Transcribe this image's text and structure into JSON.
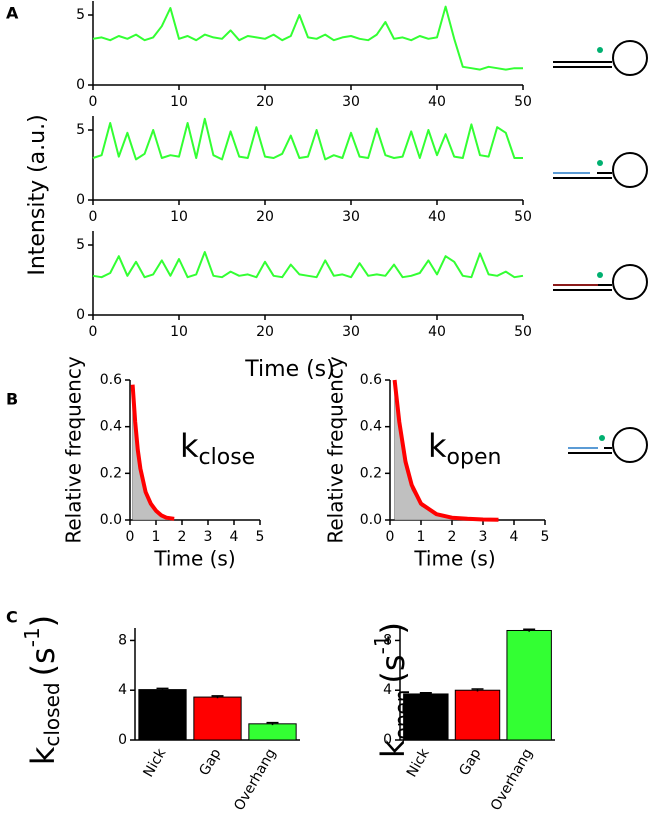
{
  "panel_labels": [
    "A",
    "B",
    "C"
  ],
  "shared_y_label": "Intensity (a.u.)",
  "shared_x_label": "Time (s)",
  "chart_data": [
    {
      "type": "line",
      "xlim": [
        0,
        50
      ],
      "ylim": [
        0,
        6
      ],
      "xticks": [
        0,
        10,
        20,
        30,
        40,
        50
      ],
      "yticks": [
        0,
        5
      ],
      "x": [
        0,
        1,
        2,
        3,
        4,
        5,
        6,
        7,
        8,
        9,
        10,
        11,
        12,
        13,
        14,
        15,
        16,
        17,
        18,
        19,
        20,
        21,
        22,
        23,
        24,
        25,
        26,
        27,
        28,
        29,
        30,
        31,
        32,
        33,
        34,
        35,
        36,
        37,
        38,
        39,
        40,
        41,
        42,
        43,
        44,
        45,
        46,
        47,
        48,
        49,
        50
      ],
      "series": [
        {
          "color": "#33ff33",
          "values": [
            3.3,
            3.4,
            3.2,
            3.5,
            3.3,
            3.6,
            3.2,
            3.4,
            4.2,
            5.5,
            3.3,
            3.5,
            3.2,
            3.6,
            3.4,
            3.3,
            3.9,
            3.2,
            3.5,
            3.4,
            3.3,
            3.6,
            3.2,
            3.5,
            5.0,
            3.4,
            3.3,
            3.6,
            3.2,
            3.4,
            3.5,
            3.3,
            3.2,
            3.6,
            4.5,
            3.3,
            3.4,
            3.2,
            3.5,
            3.3,
            3.4,
            5.6,
            3.3,
            1.3,
            1.2,
            1.1,
            1.3,
            1.2,
            1.1,
            1.2,
            1.2
          ]
        }
      ]
    },
    {
      "type": "line",
      "xlim": [
        0,
        50
      ],
      "ylim": [
        0,
        6
      ],
      "xticks": [
        0,
        10,
        20,
        30,
        40,
        50
      ],
      "yticks": [
        0,
        5
      ],
      "x": [
        0,
        1,
        2,
        3,
        4,
        5,
        6,
        7,
        8,
        9,
        10,
        11,
        12,
        13,
        14,
        15,
        16,
        17,
        18,
        19,
        20,
        21,
        22,
        23,
        24,
        25,
        26,
        27,
        28,
        29,
        30,
        31,
        32,
        33,
        34,
        35,
        36,
        37,
        38,
        39,
        40,
        41,
        42,
        43,
        44,
        45,
        46,
        47,
        48,
        49,
        50
      ],
      "series": [
        {
          "color": "#33ff33",
          "values": [
            3.0,
            3.2,
            5.5,
            3.1,
            4.8,
            2.9,
            3.3,
            5.0,
            3.0,
            3.2,
            3.1,
            5.5,
            3.0,
            5.8,
            3.2,
            2.9,
            4.9,
            3.1,
            3.0,
            5.2,
            3.1,
            3.0,
            3.3,
            4.6,
            3.0,
            3.1,
            5.0,
            2.9,
            3.2,
            3.0,
            4.8,
            3.1,
            3.0,
            5.1,
            3.2,
            3.0,
            3.1,
            4.9,
            3.0,
            5.0,
            3.2,
            4.7,
            3.1,
            3.0,
            5.4,
            3.2,
            3.1,
            5.2,
            4.8,
            3.0,
            3.0
          ]
        }
      ]
    },
    {
      "type": "line",
      "xlim": [
        0,
        50
      ],
      "ylim": [
        0,
        6
      ],
      "xticks": [
        0,
        10,
        20,
        30,
        40,
        50
      ],
      "yticks": [
        0,
        5
      ],
      "x": [
        0,
        1,
        2,
        3,
        4,
        5,
        6,
        7,
        8,
        9,
        10,
        11,
        12,
        13,
        14,
        15,
        16,
        17,
        18,
        19,
        20,
        21,
        22,
        23,
        24,
        25,
        26,
        27,
        28,
        29,
        30,
        31,
        32,
        33,
        34,
        35,
        36,
        37,
        38,
        39,
        40,
        41,
        42,
        43,
        44,
        45,
        46,
        47,
        48,
        49,
        50
      ],
      "series": [
        {
          "color": "#33ff33",
          "values": [
            2.8,
            2.7,
            3.0,
            4.2,
            2.8,
            3.8,
            2.7,
            2.9,
            3.9,
            2.8,
            4.0,
            2.7,
            2.9,
            4.5,
            2.8,
            2.7,
            3.1,
            2.8,
            2.9,
            2.7,
            3.8,
            2.8,
            2.7,
            3.6,
            2.9,
            2.8,
            2.7,
            3.9,
            2.8,
            2.9,
            2.7,
            3.7,
            2.8,
            2.9,
            2.8,
            3.6,
            2.7,
            2.8,
            3.0,
            3.9,
            2.9,
            4.2,
            3.8,
            2.8,
            2.7,
            4.4,
            2.9,
            2.8,
            3.1,
            2.7,
            2.8
          ]
        }
      ]
    },
    {
      "type": "line",
      "y_label": "Relative frequency",
      "x_label": "Time (s)",
      "annotation": {
        "main": "k",
        "sub": "close"
      },
      "xlim": [
        0,
        5
      ],
      "ylim": [
        0,
        0.6
      ],
      "xticks": [
        0,
        1,
        2,
        3,
        4,
        5
      ],
      "yticks": [
        {
          "value": 0,
          "label": "0.0"
        },
        0.2,
        0.4,
        0.6
      ],
      "x": [
        0.1,
        0.2,
        0.3,
        0.4,
        0.6,
        0.8,
        1.0,
        1.2,
        1.4,
        1.7
      ],
      "series": [
        {
          "color": "#c0c0c0",
          "fill": true,
          "values": [
            0.55,
            0.4,
            0.28,
            0.2,
            0.11,
            0.06,
            0.035,
            0.02,
            0.01,
            0
          ]
        },
        {
          "color": "#ff0000",
          "values": [
            0.58,
            0.42,
            0.3,
            0.22,
            0.12,
            0.07,
            0.04,
            0.02,
            0.01,
            0.005
          ]
        }
      ]
    },
    {
      "type": "line",
      "y_label": "Relative frequency",
      "x_label": "Time (s)",
      "annotation": {
        "main": "k",
        "sub": "open"
      },
      "xlim": [
        0,
        5
      ],
      "ylim": [
        0,
        0.6
      ],
      "xticks": [
        0,
        1,
        2,
        3,
        4,
        5
      ],
      "yticks": [
        {
          "value": 0,
          "label": "0.0"
        },
        0.2,
        0.4,
        0.6
      ],
      "x": [
        0.15,
        0.3,
        0.5,
        0.7,
        1.0,
        1.5,
        2.0,
        2.5,
        3.0,
        3.5
      ],
      "series": [
        {
          "color": "#c0c0c0",
          "fill": true,
          "values": [
            0.58,
            0.4,
            0.23,
            0.13,
            0.06,
            0.02,
            0.008,
            0.003,
            0.001,
            0
          ]
        },
        {
          "color": "#ff0000",
          "values": [
            0.6,
            0.42,
            0.25,
            0.15,
            0.07,
            0.025,
            0.01,
            0.005,
            0.002,
            0.001
          ]
        }
      ]
    },
    {
      "type": "bar",
      "y_label": {
        "main": "k",
        "sub": "closed",
        "unit": "(s",
        "sup": "-1",
        "close": ")"
      },
      "ylim": [
        0,
        9
      ],
      "yticks": [
        0,
        4,
        8
      ],
      "categories": [
        "Nick",
        "Gap",
        "Overhang"
      ],
      "values": [
        4.05,
        3.45,
        1.3
      ],
      "errors": [
        0.1,
        0.1,
        0.1
      ],
      "colors": [
        "#000000",
        "#ff0000",
        "#33ff33"
      ]
    },
    {
      "type": "bar",
      "y_label": {
        "main": "k",
        "sub": "open",
        "unit": "(s",
        "sup": "-1",
        "close": ")"
      },
      "ylim": [
        0,
        9
      ],
      "yticks": [
        0,
        4,
        8
      ],
      "categories": [
        "Nick",
        "Gap",
        "Overhang"
      ],
      "values": [
        3.7,
        4.0,
        8.8
      ],
      "errors": [
        0.1,
        0.1,
        0.1
      ],
      "colors": [
        "#000000",
        "#ff0000",
        "#33ff33"
      ]
    }
  ]
}
